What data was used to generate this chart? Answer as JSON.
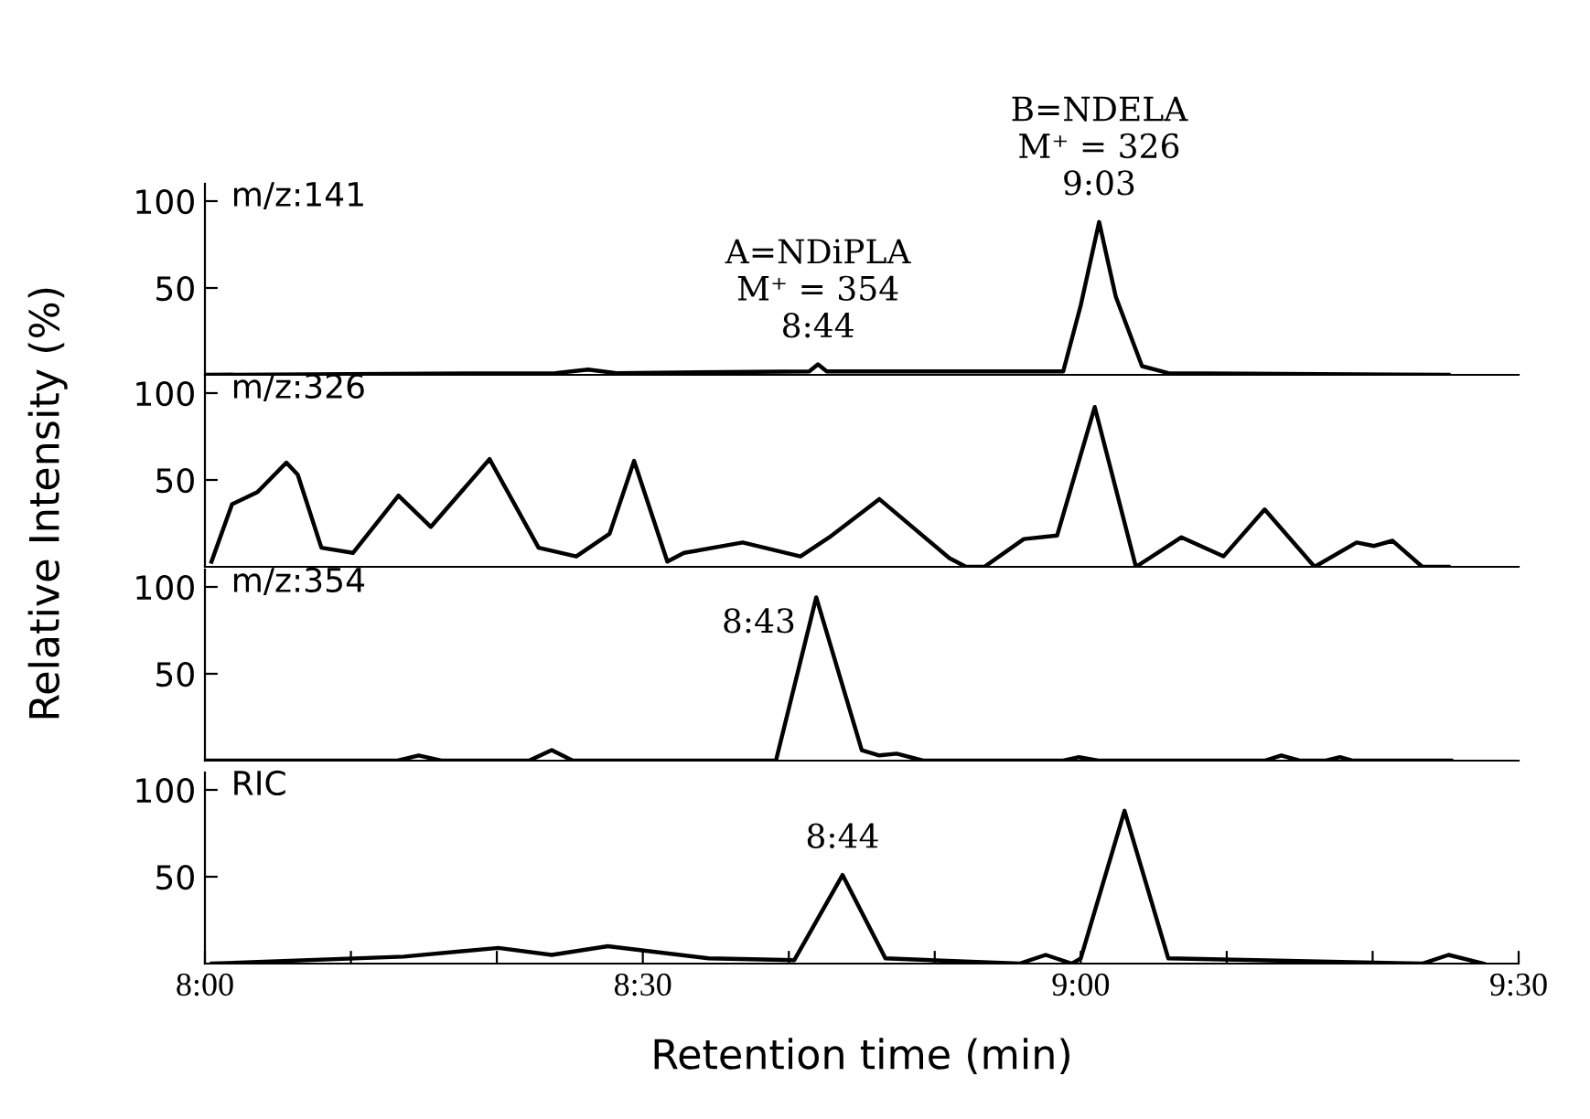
{
  "chart_data": [
    {
      "type": "line",
      "ylabel": "Relative Intensity (%)",
      "annotations": [
        "m/z:141",
        {
          "text": "A=NDiPLA\nM⁺ = 354\n8:44",
          "x": 8.7,
          "y": 6
        },
        {
          "text": "B=NDELA\nM⁺ = 326\n9:03",
          "x": 9.021,
          "y": 88
        }
      ],
      "tick_labels": "y",
      "xlim": [
        8.0,
        9.5
      ],
      "ylim": [
        0,
        110
      ],
      "yticks": [
        50,
        100
      ],
      "series": [
        {
          "color": "#000000",
          "x": [
            8.0,
            8.4,
            8.4375,
            8.47,
            8.69,
            8.7,
            8.71,
            8.98,
            9.0,
            9.021,
            9.04,
            9.07,
            9.1,
            9.42
          ],
          "values": [
            0,
            1,
            3,
            1,
            2,
            6,
            2,
            2,
            40,
            88,
            45,
            5,
            1,
            0
          ]
        }
      ]
    },
    {
      "type": "line",
      "annotations": [
        "m/z:326"
      ],
      "tick_labels": "y",
      "xlim": [
        8.0,
        9.5
      ],
      "ylim": [
        0,
        110
      ],
      "yticks": [
        50,
        100
      ],
      "series": [
        {
          "color": "#000000",
          "x": [
            8.0075,
            8.031,
            8.06,
            8.093,
            8.106,
            8.133,
            8.169,
            8.221,
            8.258,
            8.325,
            8.381,
            8.424,
            8.462,
            8.49,
            8.528,
            8.547,
            8.614,
            8.68,
            8.713,
            8.77,
            8.85,
            8.869,
            8.89,
            8.935,
            8.973,
            9.016,
            9.063,
            9.115,
            9.163,
            9.21,
            9.267,
            9.315,
            9.335,
            9.356,
            9.39,
            9.42
          ],
          "values": [
            3,
            36,
            43,
            60,
            53,
            11,
            8,
            41,
            23,
            62,
            11,
            6,
            19,
            61,
            3,
            8,
            14,
            6,
            17,
            39,
            5,
            0,
            0,
            16,
            18,
            92,
            0,
            17,
            6,
            33,
            0,
            14,
            12,
            15,
            0,
            0
          ]
        }
      ]
    },
    {
      "type": "line",
      "annotations": [
        "m/z:354",
        {
          "text": "8:43",
          "x": 8.698,
          "y": 94
        }
      ],
      "tick_labels": "y",
      "xlim": [
        8.0,
        9.5
      ],
      "ylim": [
        0,
        110
      ],
      "yticks": [
        50,
        100
      ],
      "series": [
        {
          "color": "#000000",
          "x": [
            8.0,
            8.22,
            8.244,
            8.27,
            8.37,
            8.396,
            8.42,
            8.652,
            8.698,
            8.75,
            8.77,
            8.79,
            8.82,
            8.98,
            8.998,
            9.02,
            9.21,
            9.229,
            9.25,
            9.28,
            9.296,
            9.31,
            9.423
          ],
          "values": [
            0,
            0,
            3,
            0,
            0,
            6,
            0,
            0,
            94,
            6,
            3,
            4,
            0,
            0,
            2,
            0,
            0,
            3,
            0,
            0,
            2,
            0,
            0
          ]
        }
      ]
    },
    {
      "type": "line",
      "xlabel": "Retention time (min)",
      "annotations": [
        "RIC",
        {
          "text": "8:44",
          "x": 8.728,
          "y": 51
        }
      ],
      "xlim": [
        8.0,
        9.5
      ],
      "ylim": [
        0,
        110
      ],
      "yticks": [
        50,
        100
      ],
      "xticks": [
        {
          "value": 8.0,
          "label": "8:00"
        },
        {
          "value": 8.1667,
          "label": null
        },
        {
          "value": 8.3333,
          "label": null
        },
        {
          "value": 8.5,
          "label": "8:30"
        },
        {
          "value": 8.6667,
          "label": null
        },
        {
          "value": 8.8333,
          "label": null
        },
        {
          "value": 9.0,
          "label": "9:00"
        },
        {
          "value": 9.1667,
          "label": null
        },
        {
          "value": 9.3333,
          "label": null
        },
        {
          "value": 9.5,
          "label": "9:30"
        }
      ],
      "series": [
        {
          "color": "#000000",
          "x": [
            8.008,
            8.227,
            8.335,
            8.396,
            8.46,
            8.575,
            8.673,
            8.728,
            8.777,
            8.93,
            8.96,
            8.99,
            9.0,
            9.05,
            9.1,
            9.39,
            9.42,
            9.46
          ],
          "values": [
            0,
            4,
            9,
            5,
            10,
            3,
            2,
            51,
            3,
            0,
            5,
            0,
            3,
            88,
            3,
            0,
            5,
            0
          ]
        }
      ]
    }
  ]
}
